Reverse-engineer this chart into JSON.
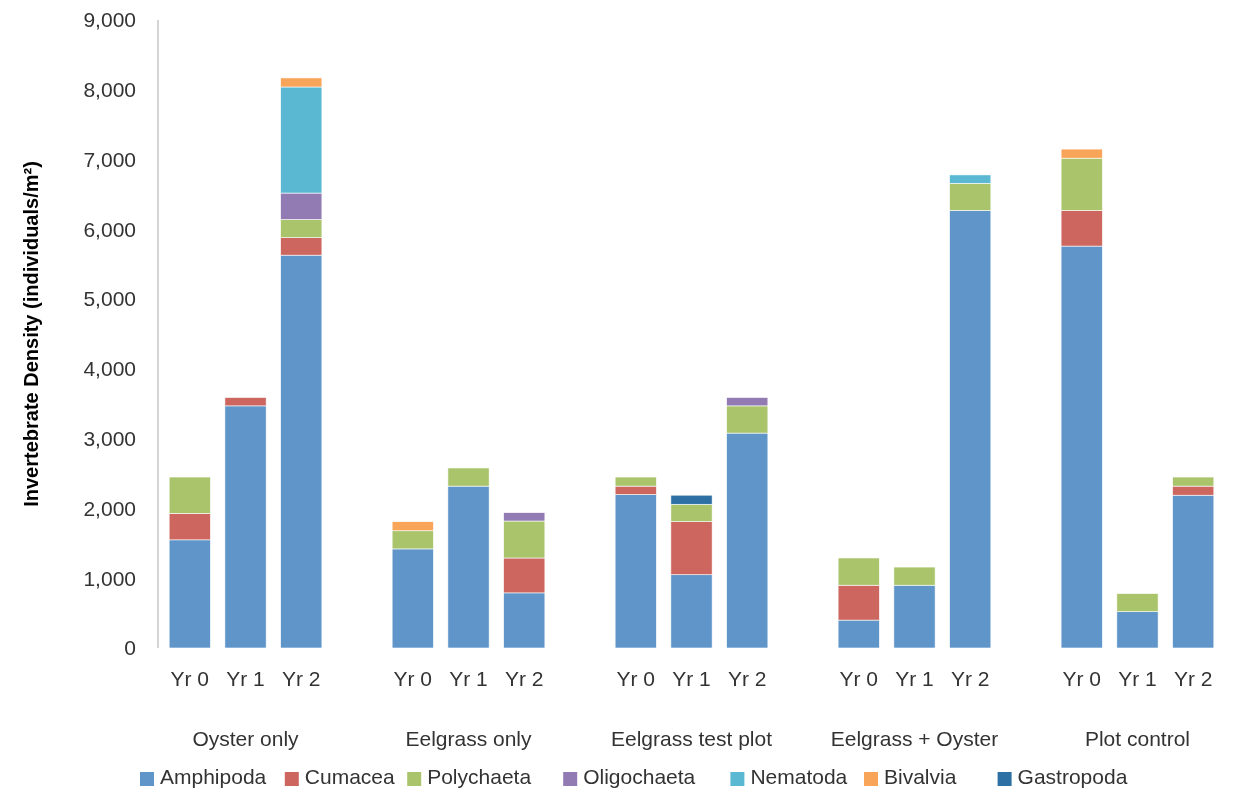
{
  "chart_data": {
    "type": "bar",
    "stacked": true,
    "ylabel": "Invertebrate Density (individuals/m²)",
    "categories": [
      "Yr 0",
      "Yr 1",
      "Yr 2",
      null,
      "Yr 0",
      "Yr 1",
      "Yr 2",
      null,
      "Yr 0",
      "Yr 1",
      "Yr 2",
      null,
      "Yr 0",
      "Yr 1",
      "Yr 2",
      null,
      "Yr 0",
      "Yr 1",
      "Yr 2"
    ],
    "annotations": [
      "Oyster only",
      "Eelgrass only",
      "Eelgrass test plot",
      "Eelgrass + Oyster",
      "Plot control"
    ],
    "ylim": [
      0,
      9000
    ],
    "yticks": [
      {
        "value": 0,
        "label": "0"
      },
      {
        "value": 1000,
        "label": "1,000"
      },
      {
        "value": 2000,
        "label": "2,000"
      },
      {
        "value": 3000,
        "label": "3,000"
      },
      {
        "value": 4000,
        "label": "4,000"
      },
      {
        "value": 5000,
        "label": "5,000"
      },
      {
        "value": 6000,
        "label": "6,000"
      },
      {
        "value": 7000,
        "label": "7,000"
      },
      {
        "value": 8000,
        "label": "8,000"
      },
      {
        "value": 9000,
        "label": "9,000"
      }
    ],
    "grid": false,
    "legend": "bottom",
    "series": [
      {
        "name": "Amphipoda",
        "color": "#5f95c9",
        "values": [
          1550,
          3470,
          5630,
          null,
          1420,
          2320,
          790,
          null,
          2200,
          1050,
          3080,
          null,
          400,
          900,
          6270,
          null,
          5760,
          520,
          2190
        ]
      },
      {
        "name": "Cumacea",
        "color": "#cc665e",
        "values": [
          380,
          120,
          250,
          null,
          null,
          null,
          500,
          null,
          120,
          760,
          null,
          null,
          500,
          null,
          null,
          null,
          510,
          null,
          130
        ]
      },
      {
        "name": "Polychaeta",
        "color": "#aac46c",
        "values": [
          520,
          null,
          260,
          null,
          260,
          260,
          530,
          null,
          130,
          250,
          390,
          null,
          390,
          260,
          390,
          null,
          750,
          260,
          130
        ]
      },
      {
        "name": "Oligochaeta",
        "color": "#927bb2",
        "values": [
          null,
          null,
          380,
          null,
          null,
          null,
          120,
          null,
          null,
          null,
          120,
          null,
          null,
          null,
          null,
          null,
          null,
          null,
          null
        ]
      },
      {
        "name": "Nematoda",
        "color": "#5bb8d2",
        "values": [
          null,
          null,
          1520,
          null,
          null,
          null,
          null,
          null,
          null,
          null,
          null,
          null,
          null,
          null,
          120,
          null,
          null,
          null,
          null
        ]
      },
      {
        "name": "Bivalvia",
        "color": "#f8a55a",
        "values": [
          null,
          null,
          130,
          null,
          130,
          null,
          null,
          null,
          null,
          null,
          null,
          null,
          null,
          null,
          null,
          null,
          130,
          null,
          null
        ]
      },
      {
        "name": "Gastropoda",
        "color": "#2d70a4",
        "values": [
          null,
          null,
          null,
          null,
          null,
          null,
          null,
          null,
          null,
          130,
          null,
          null,
          null,
          null,
          null,
          null,
          null,
          null,
          null
        ]
      }
    ]
  }
}
